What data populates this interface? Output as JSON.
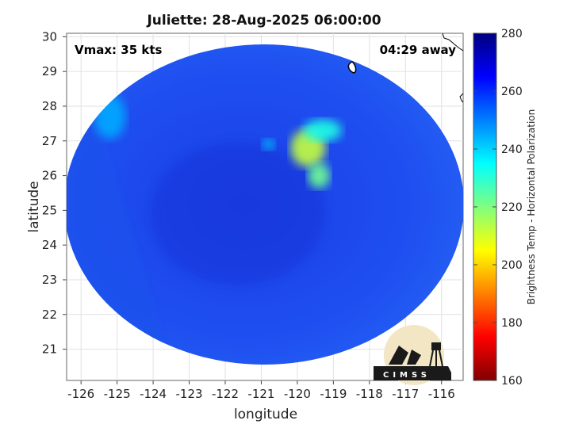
{
  "chart_data": {
    "type": "heatmap",
    "title": "Juliette: 28-Aug-2025 06:00:00",
    "xlabel": "longitude",
    "ylabel": "latitude",
    "xlim": [
      -126.4,
      -115.4
    ],
    "ylim": [
      20.1,
      30.1
    ],
    "x_ticks": [
      "-126",
      "-125",
      "-124",
      "-123",
      "-122",
      "-121",
      "-120",
      "-119",
      "-118",
      "-117",
      "-116"
    ],
    "y_ticks": [
      "30",
      "29",
      "28",
      "27",
      "26",
      "25",
      "24",
      "23",
      "22",
      "21"
    ],
    "grid": true,
    "annotations": {
      "vmax": "Vmax: 35 kts",
      "time_away": "04:29 away"
    },
    "colorbar": {
      "label": "Brightness Temp - Horizontal Polarization",
      "range": [
        160,
        280
      ],
      "ticks": [
        "280",
        "260",
        "240",
        "220",
        "200",
        "180",
        "160"
      ],
      "colormap": "jet"
    },
    "swath": {
      "center_lon": -120.9,
      "center_lat": 25.1,
      "background_temp": 265,
      "cold_features": [
        {
          "lon": -119.7,
          "lat": 26.8,
          "temp": 212
        },
        {
          "lon": -119.4,
          "lat": 26.0,
          "temp": 222
        },
        {
          "lon": -119.3,
          "lat": 27.3,
          "temp": 232
        },
        {
          "lon": -120.8,
          "lat": 26.9,
          "temp": 242
        },
        {
          "lon": -125.2,
          "lat": 27.7,
          "temp": 245
        }
      ]
    },
    "logo": "CIMSS"
  }
}
